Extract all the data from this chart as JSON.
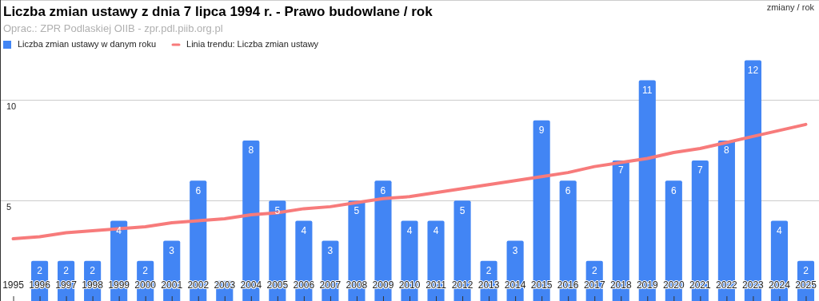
{
  "chart_data": {
    "type": "bar",
    "title": "Liczba zmian ustawy z dnia 7 lipca 1994 r. - Prawo budowlane / rok",
    "subtitle": "Oprac.: ZPR Podlaskiej OIIB - zpr.pdl.piib.org.pl",
    "ylabel": "zmiany / rok",
    "categories": [
      "1995",
      "1996",
      "1997",
      "1998",
      "1999",
      "2000",
      "2001",
      "2002",
      "2003",
      "2004",
      "2005",
      "2006",
      "2007",
      "2008",
      "2009",
      "2010",
      "2011",
      "2012",
      "2013",
      "2014",
      "2015",
      "2016",
      "2017",
      "2018",
      "2019",
      "2020",
      "2021",
      "2022",
      "2023",
      "2024",
      "2025"
    ],
    "series": [
      {
        "name": "Liczba zmian ustawy w danym roku",
        "color": "#4285f4",
        "values": [
          0,
          2,
          2,
          2,
          4,
          2,
          3,
          6,
          1,
          8,
          5,
          4,
          3,
          5,
          6,
          4,
          4,
          5,
          2,
          3,
          9,
          6,
          2,
          7,
          11,
          6,
          7,
          8,
          12,
          4,
          2
        ],
        "value_labels": [
          null,
          "2",
          "2",
          "2",
          "4",
          "2",
          "3",
          "6",
          null,
          "8",
          "5",
          "4",
          "3",
          "5",
          "6",
          "4",
          "4",
          "5",
          "2",
          "3",
          "9",
          "6",
          "2",
          "7",
          "11",
          "6",
          "7",
          "8",
          "12",
          "4",
          "2"
        ]
      },
      {
        "name": "Linia trendu: Liczba zmian ustawy",
        "type": "line",
        "color": "#f77b7b",
        "values": [
          3.1,
          3.2,
          3.4,
          3.5,
          3.6,
          3.7,
          3.9,
          4.0,
          4.1,
          4.3,
          4.4,
          4.6,
          4.7,
          4.9,
          5.1,
          5.2,
          5.4,
          5.6,
          5.8,
          6.0,
          6.2,
          6.4,
          6.7,
          6.9,
          7.1,
          7.4,
          7.6,
          7.9,
          8.2,
          8.5,
          8.8
        ]
      }
    ],
    "ylim": [
      0,
      15
    ],
    "yticks": [
      5,
      10,
      {
        "value": 15,
        "label": null
      }
    ],
    "grid": "y",
    "legend": "top left",
    "marker": "none",
    "line_style": "solid"
  }
}
